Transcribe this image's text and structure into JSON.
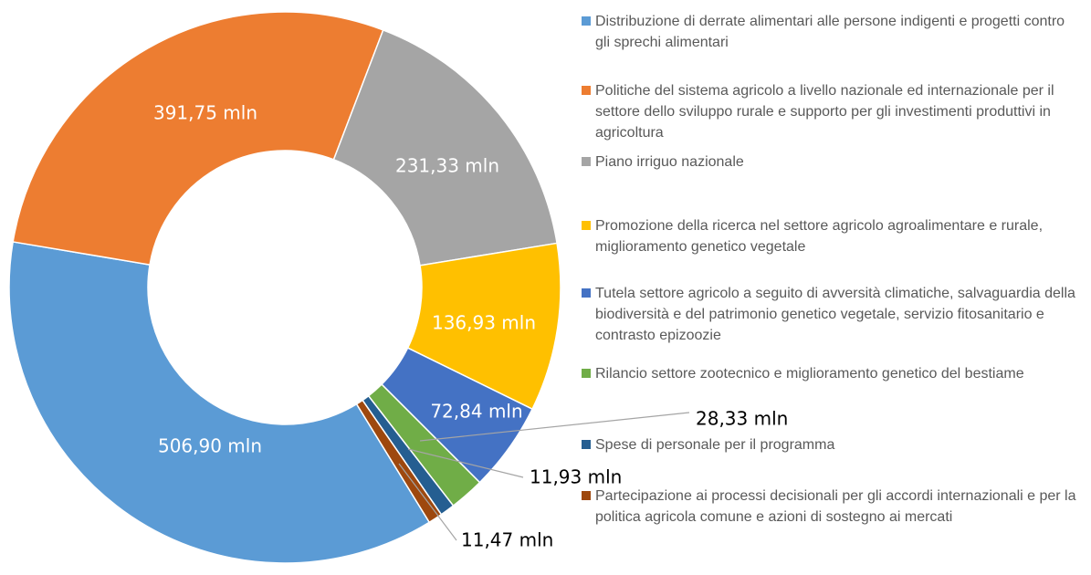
{
  "chart_data": {
    "type": "donut",
    "categories": [
      "Distribuzione di derrate alimentari alle persone indigenti e progetti contro gli sprechi alimentari",
      "Politiche del sistema agricolo a livello nazionale ed internazionale per il settore dello sviluppo rurale e supporto per gli investimenti produttivi in agricoltura",
      "Piano irriguo nazionale",
      "Promozione della ricerca nel settore agricolo agroalimentare e rurale, miglioramento genetico vegetale",
      "Tutela settore agricolo a seguito di avversità climatiche, salvaguardia della biodiversità e del patrimonio genetico vegetale, servizio fitosanitario e contrasto epizoozie",
      "Rilancio settore zootecnico e miglioramento genetico del bestiame",
      "Spese di personale per il programma",
      "Partecipazione ai processi decisionali per gli accordi internazionali e per la politica agricola comune e azioni di sostegno ai mercati"
    ],
    "values": [
      506.9,
      391.75,
      231.33,
      136.93,
      72.84,
      28.33,
      11.93,
      11.47
    ],
    "value_labels": [
      "506,90 mln",
      "391,75 mln",
      "231,33 mln",
      "136,93 mln",
      "72,84 mln",
      "28,33 mln",
      "11,93 mln",
      "11,47 mln"
    ],
    "colors": [
      "#5b9bd5",
      "#ed7d31",
      "#a5a5a5",
      "#ffc000",
      "#4472c4",
      "#70ad47",
      "#255e91",
      "#9e480e"
    ],
    "start_angle": 148.4
  }
}
